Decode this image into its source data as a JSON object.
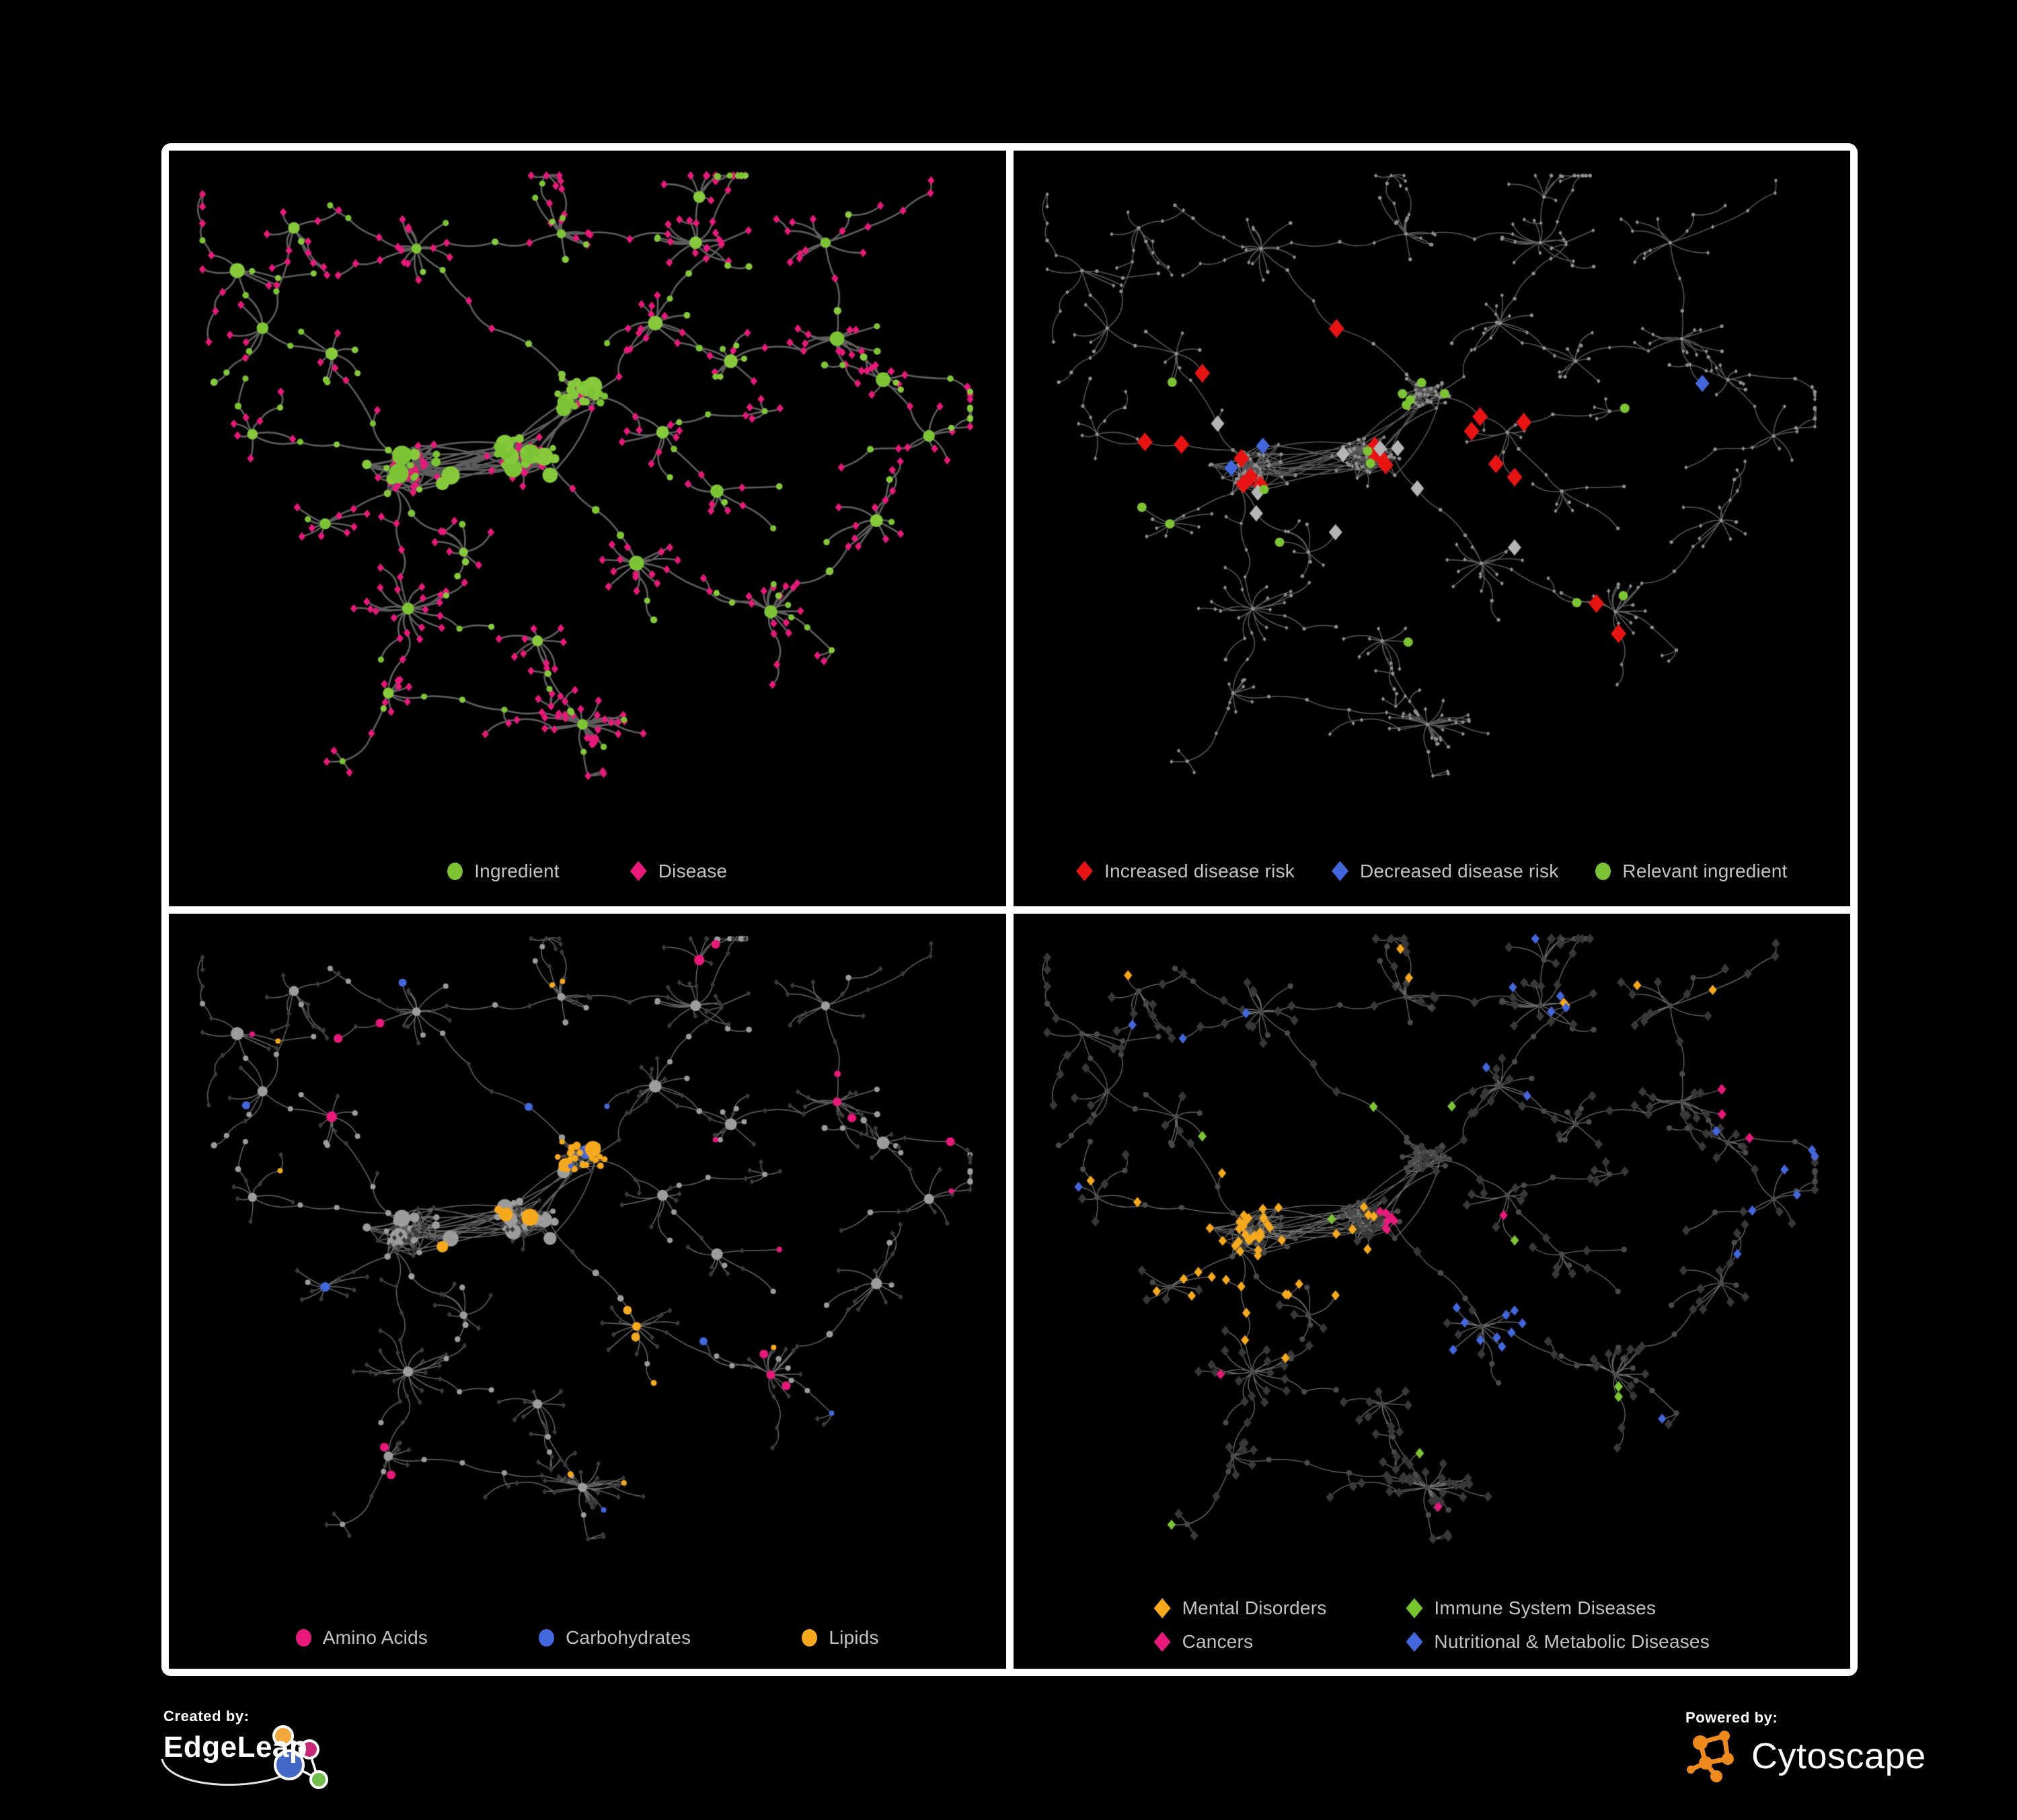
{
  "panels": [
    {
      "name": "ingredient-disease-network",
      "legend": [
        {
          "label": "Ingredient",
          "shape": "circle",
          "color": "#7CC433"
        },
        {
          "label": "Disease",
          "shape": "diamond",
          "color": "#E8197B"
        }
      ]
    },
    {
      "name": "disease-risk-network",
      "legend": [
        {
          "label": "Increased disease risk",
          "shape": "diamond",
          "color": "#E81414"
        },
        {
          "label": "Decreased disease risk",
          "shape": "diamond",
          "color": "#4368DE"
        },
        {
          "label": "Relevant ingredient",
          "shape": "circle",
          "color": "#7CC433"
        }
      ]
    },
    {
      "name": "nutrient-class-network",
      "legend": [
        {
          "label": "Amino Acids",
          "shape": "circle",
          "color": "#E8197B"
        },
        {
          "label": "Carbohydrates",
          "shape": "circle",
          "color": "#4368DE"
        },
        {
          "label": "Lipids",
          "shape": "circle",
          "color": "#F6A91B"
        }
      ]
    },
    {
      "name": "disease-class-network",
      "legend": [
        {
          "label": "Mental Disorders",
          "shape": "diamond",
          "color": "#F6A91B"
        },
        {
          "label": "Immune System Diseases",
          "shape": "diamond",
          "color": "#76C52E"
        },
        {
          "label": "Cancers",
          "shape": "diamond",
          "color": "#E8197B"
        },
        {
          "label": "Nutritional & Metabolic Diseases",
          "shape": "diamond",
          "color": "#4368DE"
        }
      ]
    }
  ],
  "footer": {
    "created_by_label": "Created by:",
    "created_by_brand": "EdgeLeap",
    "powered_by_label": "Powered by:",
    "powered_by_brand": "Cytoscape"
  },
  "style": {
    "background": "#000000",
    "frame": "#FFFFFF",
    "legend_text": "#C2C2C2",
    "edge_colors": [
      "#646464",
      "#707070",
      "#7F7F7F",
      "#8C8C8C"
    ],
    "edge_widths": [
      2.7,
      1.5,
      1.5,
      1.25
    ],
    "muted": {
      "tiny_node": "#8F8F8F",
      "circle_gray": "#9C9C9C",
      "diamond_dark": "#3B3B3B",
      "circle_dark": "#4A4A4A",
      "diamond_gray": "#B5B5B5"
    },
    "accents": {
      "green": "#7CC433",
      "pink": "#E8197B",
      "red": "#E81414",
      "blue": "#4368DE",
      "orange": "#F6A91B"
    }
  }
}
